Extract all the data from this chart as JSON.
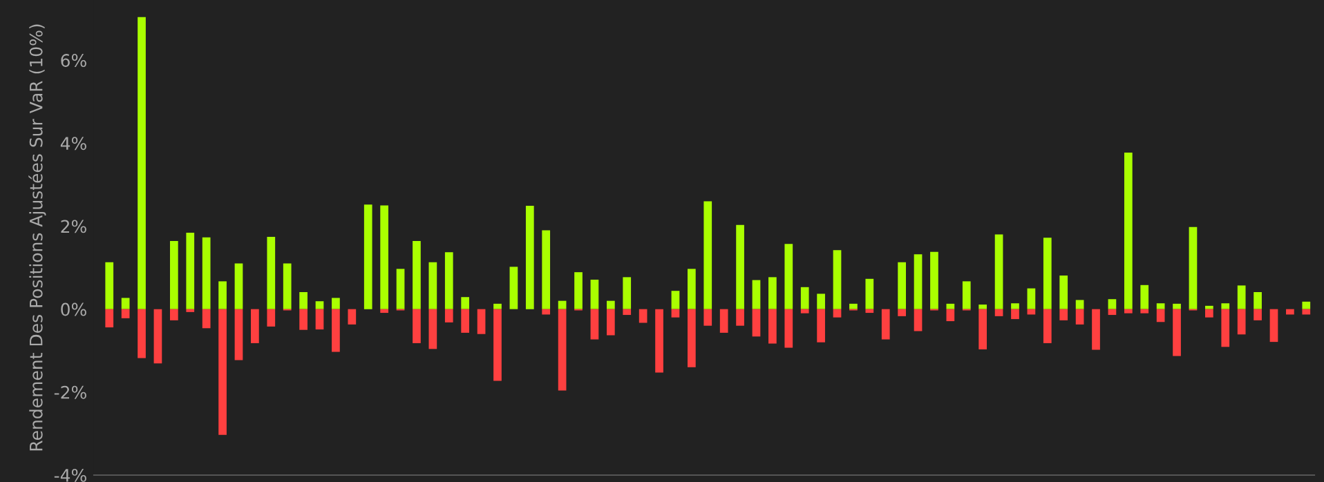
{
  "chart_data": {
    "type": "bar",
    "stacked": true,
    "ylabel": "Rendement Des Positions Ajustées Sur VaR (10%)",
    "categories": [
      null,
      null,
      null,
      null,
      null,
      null,
      null,
      null,
      null,
      null,
      null,
      null,
      null,
      null,
      null,
      null,
      null,
      null,
      null,
      null,
      null,
      null,
      null,
      null,
      null,
      null,
      null,
      null,
      null,
      null,
      null,
      null,
      null,
      null,
      null,
      null,
      null,
      null,
      null,
      null,
      null,
      null,
      null,
      null,
      null,
      null,
      null,
      null,
      null,
      null,
      null,
      null,
      null,
      null,
      null,
      null,
      null,
      null,
      null,
      null,
      null,
      null,
      null,
      null,
      null,
      null,
      null,
      null,
      null,
      null,
      null,
      null,
      null,
      null,
      null
    ],
    "series": [
      {
        "color": "#aaff00",
        "values": [
          1.13,
          0.27,
          7.04,
          0,
          1.64,
          1.84,
          1.73,
          0.67,
          1.1,
          0,
          1.74,
          1.1,
          0.41,
          0.19,
          0.27,
          0,
          2.52,
          2.5,
          0.97,
          1.64,
          1.13,
          1.37,
          0.29,
          0,
          0.13,
          1.02,
          2.49,
          1.9,
          0.2,
          0.89,
          0.71,
          0.2,
          0.77,
          0,
          0,
          0.44,
          0.97,
          2.6,
          0,
          2.03,
          0.7,
          0.77,
          1.57,
          0.53,
          0.37,
          1.42,
          0.13,
          0.73,
          0,
          1.13,
          1.32,
          1.38,
          0.13,
          0.67,
          0.11,
          1.8,
          0.14,
          0.5,
          1.72,
          0.81,
          0.22,
          0,
          0.24,
          3.77,
          0.58,
          0.14,
          0.13,
          1.98,
          0.08,
          0.14,
          0.57,
          0.41,
          0,
          0,
          0.18
        ]
      },
      {
        "color": "#ff4040",
        "values": [
          -0.44,
          -0.22,
          -1.18,
          -1.31,
          -0.27,
          -0.07,
          -0.46,
          -3.03,
          -1.23,
          -0.82,
          -0.42,
          -0.03,
          -0.5,
          -0.49,
          -1.03,
          -0.37,
          0,
          -0.09,
          -0.03,
          -0.82,
          -0.96,
          -0.32,
          -0.57,
          -0.6,
          -1.73,
          0,
          0,
          -0.13,
          -1.96,
          -0.03,
          -0.73,
          -0.63,
          -0.14,
          -0.33,
          -1.53,
          -0.2,
          -1.4,
          -0.4,
          -0.57,
          -0.4,
          -0.66,
          -0.83,
          -0.93,
          -0.1,
          -0.8,
          -0.2,
          -0.03,
          -0.09,
          -0.73,
          -0.17,
          -0.53,
          -0.03,
          -0.29,
          -0.03,
          -0.97,
          -0.17,
          -0.24,
          -0.13,
          -0.82,
          -0.27,
          -0.37,
          -0.98,
          -0.14,
          -0.1,
          -0.1,
          -0.31,
          -1.13,
          -0.03,
          -0.2,
          -0.91,
          -0.61,
          -0.27,
          -0.79,
          -0.13,
          -0.13
        ]
      }
    ],
    "ylim": [
      -4,
      7.45
    ],
    "yticks": [
      {
        "value": -4,
        "label": "-4%"
      },
      {
        "value": -2,
        "label": "-2%"
      },
      {
        "value": 0,
        "label": "0%"
      },
      {
        "value": 2,
        "label": "2%"
      },
      {
        "value": 4,
        "label": "4%"
      },
      {
        "value": 6,
        "label": "6%"
      }
    ],
    "grid": false,
    "legend": false
  }
}
